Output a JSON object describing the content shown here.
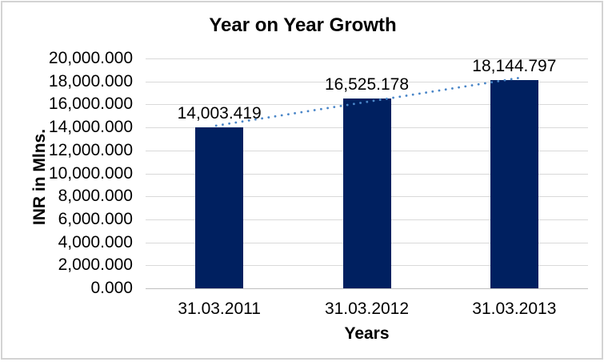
{
  "frame": {
    "background": "#ffffff",
    "border_color": "#d3d3d3"
  },
  "chart_data": {
    "type": "bar",
    "title": "Year on Year Growth",
    "xlabel": "Years",
    "ylabel": "INR in Mlns.",
    "categories": [
      "31.03.2011",
      "31.03.2012",
      "31.03.2013"
    ],
    "series": [
      {
        "name": "INR in Mlns.",
        "values": [
          14003.419,
          16525.178,
          18144.797
        ]
      }
    ],
    "data_labels": [
      "14,003.419",
      "16,525.178",
      "18,144.797"
    ],
    "ylim": [
      0,
      20000
    ],
    "ytick_step": 2000,
    "ytick_labels": [
      "20,000.000",
      "18,000.000",
      "16,000.000",
      "14,000.000",
      "12,000.000",
      "10,000.000",
      "8,000.000",
      "6,000.000",
      "4,000.000",
      "2,000.000",
      "0.000"
    ],
    "grid": true,
    "legend": "none",
    "trendline": {
      "type": "linear",
      "style": "dotted",
      "color": "#4a86c8"
    },
    "colors": {
      "bar": "#002060",
      "gridline": "#d9d9d9",
      "axis_line": "#bfbfbf",
      "text": "#000000"
    }
  }
}
